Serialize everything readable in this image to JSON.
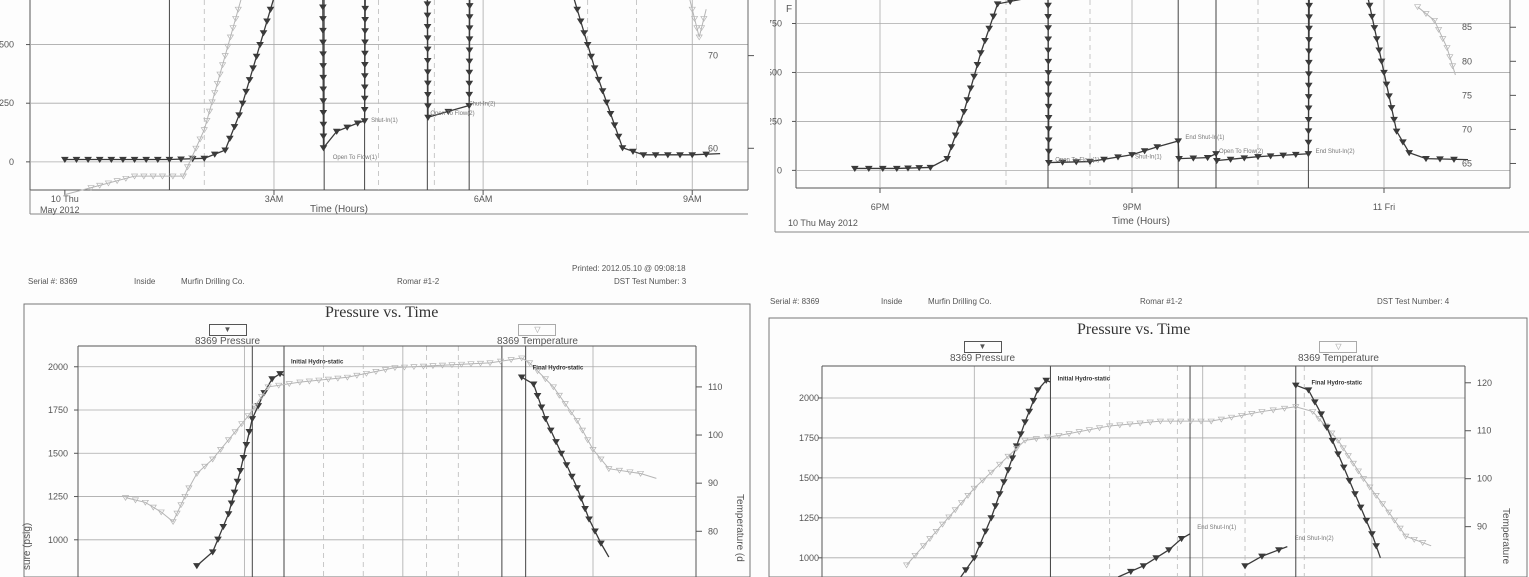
{
  "colors": {
    "pressure": "#3a3a3a",
    "temperature": "#b5b5b5",
    "grid": "#999999"
  },
  "chart_data": [
    {
      "id": "top-left",
      "type": "line",
      "title": "",
      "xlabel": "Time (Hours)",
      "date_label": "May 2012",
      "x_ticks": [
        "10 Thu",
        "3AM",
        "6AM",
        "9AM"
      ],
      "y_ticks": [
        "0",
        "250",
        "500"
      ],
      "y2_ticks": [
        "60",
        "70"
      ],
      "ylabel": "",
      "y2label": "",
      "series": [
        {
          "name": "",
          "role": "pressure",
          "points": [
            [
              0,
              10
            ],
            [
              0.5,
              10
            ],
            [
              1,
              10
            ],
            [
              1.5,
              10
            ],
            [
              2,
              15
            ],
            [
              2.3,
              50
            ],
            [
              2.5,
              200
            ],
            [
              2.8,
              500
            ],
            [
              3.0,
              700
            ],
            [
              3.1,
              750
            ],
            [
              3.35,
              790
            ],
            [
              3.7,
              760
            ],
            [
              3.71,
              60
            ],
            [
              3.9,
              130
            ],
            [
              4.2,
              165
            ],
            [
              4.3,
              175
            ],
            [
              4.31,
              750
            ],
            [
              4.32,
              760
            ],
            [
              5.2,
              770
            ],
            [
              5.21,
              190
            ],
            [
              5.5,
              215
            ],
            [
              5.8,
              240
            ],
            [
              5.81,
              760
            ],
            [
              7.0,
              790
            ],
            [
              7.3,
              700
            ],
            [
              7.6,
              400
            ],
            [
              8.0,
              60
            ],
            [
              8.3,
              30
            ],
            [
              9.0,
              30
            ],
            [
              9.4,
              35
            ]
          ]
        },
        {
          "name": "",
          "role": "temperature",
          "points": [
            [
              0,
              55
            ],
            [
              0.5,
              56
            ],
            [
              1,
              57
            ],
            [
              1.4,
              57
            ],
            [
              1.7,
              57
            ],
            [
              2.0,
              62
            ],
            [
              2.3,
              70
            ],
            [
              2.6,
              78
            ],
            [
              3.0,
              82
            ],
            [
              6.5,
              87
            ],
            [
              8.5,
              85
            ],
            [
              8.9,
              78
            ],
            [
              9.1,
              72
            ],
            [
              9.2,
              75
            ]
          ]
        }
      ],
      "annotations": [
        "Open To Flow(1)",
        "Shut-In(1)",
        "Open To Flow(2)",
        "Shut-In(2)"
      ]
    },
    {
      "id": "top-right",
      "type": "line",
      "title": "",
      "xlabel": "Time (Hours)",
      "date_label": "10 Thu May 2012",
      "x_ticks": [
        "6PM",
        "9PM",
        "11 Fri"
      ],
      "y_ticks": [
        "0",
        "250",
        "500",
        "750"
      ],
      "y2_ticks": [
        "65",
        "70",
        "75",
        "80",
        "85"
      ],
      "ylabel": "",
      "y2label": "",
      "series": [
        {
          "name": "",
          "role": "pressure",
          "points": [
            [
              17.7,
              10
            ],
            [
              18.2,
              10
            ],
            [
              18.6,
              15
            ],
            [
              18.8,
              60
            ],
            [
              19.0,
              300
            ],
            [
              19.2,
              600
            ],
            [
              19.4,
              850
            ],
            [
              20.0,
              900
            ],
            [
              20.01,
              40
            ],
            [
              20.5,
              45
            ],
            [
              21.0,
              80
            ],
            [
              21.3,
              120
            ],
            [
              21.55,
              150
            ],
            [
              21.56,
              60
            ],
            [
              21.9,
              65
            ],
            [
              22.0,
              85
            ],
            [
              22.01,
              50
            ],
            [
              22.5,
              70
            ],
            [
              23.1,
              85
            ],
            [
              23.11,
              900
            ],
            [
              23.8,
              900
            ],
            [
              24.0,
              500
            ],
            [
              24.15,
              200
            ],
            [
              24.3,
              90
            ],
            [
              24.5,
              60
            ],
            [
              25.0,
              55
            ]
          ]
        },
        {
          "name": "",
          "role": "temperature",
          "points": [
            [
              24.4,
              88
            ],
            [
              24.6,
              86
            ],
            [
              24.75,
              82
            ],
            [
              24.85,
              78
            ]
          ]
        }
      ],
      "annotations": [
        "Open To Flow(1)",
        "Shut-In(1)",
        "End Shut-In(1)",
        "Open To Flow(2)",
        "End Shut-In(2)"
      ]
    },
    {
      "id": "bottom-left",
      "type": "line",
      "header": {
        "serial": "Serial #:  8369",
        "position": "Inside",
        "company": "Murfin Drilling Co.",
        "well": "Romar #1-2",
        "printed": "Printed: 2012.05.10 @ 09:08:18",
        "test": "DST Test Number: 3"
      },
      "title": "Pressure vs. Time",
      "legend": [
        {
          "marker": "▼",
          "label": "8369 Pressure"
        },
        {
          "marker": "▽",
          "label": "8369 Temperature"
        }
      ],
      "ylabel": "sure (psig)",
      "y2label": "Temperature (d",
      "y_ticks": [
        "1000",
        "1250",
        "1500",
        "1750",
        "2000"
      ],
      "y2_ticks": [
        "80",
        "90",
        "100",
        "110"
      ],
      "series": [
        {
          "name": "8369 Pressure",
          "role": "pressure",
          "points": [
            [
              0.9,
              850
            ],
            [
              1.1,
              930
            ],
            [
              1.3,
              1150
            ],
            [
              1.45,
              1400
            ],
            [
              1.6,
              1700
            ],
            [
              1.75,
              1850
            ],
            [
              1.85,
              1930
            ],
            [
              1.95,
              1960
            ],
            [
              2.0,
              1950
            ]
          ]
        },
        {
          "name": "8369 Temperature",
          "role": "temperature",
          "points": [
            [
              0,
              87
            ],
            [
              0.25,
              86
            ],
            [
              0.45,
              84
            ],
            [
              0.6,
              82
            ],
            [
              0.8,
              89
            ],
            [
              0.9,
              92
            ],
            [
              1.1,
              95
            ],
            [
              1.3,
              99
            ],
            [
              1.55,
              104
            ],
            [
              1.8,
              110
            ],
            [
              2.2,
              111
            ],
            [
              2.8,
              112
            ],
            [
              3.4,
              114
            ],
            [
              4.0,
              114.5
            ],
            [
              4.6,
              115
            ],
            [
              5.0,
              116
            ],
            [
              5.1,
              115
            ],
            [
              5.4,
              110
            ],
            [
              5.7,
              103
            ],
            [
              5.9,
              97
            ],
            [
              6.1,
              93
            ],
            [
              6.5,
              92
            ],
            [
              6.7,
              91
            ]
          ]
        },
        {
          "name": "8369 Pressure",
          "role": "pressure-final",
          "points": [
            [
              5.0,
              1940
            ],
            [
              5.15,
              1900
            ],
            [
              5.3,
              1700
            ],
            [
              5.5,
              1500
            ],
            [
              5.7,
              1300
            ],
            [
              5.85,
              1120
            ],
            [
              6.0,
              980
            ],
            [
              6.1,
              900
            ]
          ]
        }
      ],
      "annotations": [
        "Initial Hydro-static",
        "Final Hydro-static"
      ]
    },
    {
      "id": "bottom-right",
      "type": "line",
      "header": {
        "serial": "Serial #:  8369",
        "position": "Inside",
        "company": "Murfin Drilling Co.",
        "well": "Romar #1-2",
        "printed": "",
        "test": "DST Test Number: 4"
      },
      "title": "Pressure vs. Time",
      "legend": [
        {
          "marker": "▼",
          "label": "8369 Pressure"
        },
        {
          "marker": "▽",
          "label": "8369 Temperature"
        }
      ],
      "ylabel": "",
      "y2label": "Temperature",
      "y_ticks": [
        "1000",
        "1250",
        "1500",
        "1750",
        "2000"
      ],
      "y2_ticks": [
        "90",
        "100",
        "110",
        "120"
      ],
      "series": [
        {
          "name": "8369 Pressure",
          "role": "pressure",
          "points": [
            [
              1.0,
              850
            ],
            [
              1.2,
              1000
            ],
            [
              1.4,
              1250
            ],
            [
              1.6,
              1550
            ],
            [
              1.8,
              1850
            ],
            [
              1.95,
              2050
            ],
            [
              2.05,
              2110
            ],
            [
              2.1,
              2100
            ]
          ]
        },
        {
          "name": "8369 Temperature",
          "role": "temperature",
          "points": [
            [
              0.4,
              82
            ],
            [
              0.6,
              86
            ],
            [
              0.9,
              92
            ],
            [
              1.2,
              98
            ],
            [
              1.5,
              103
            ],
            [
              1.8,
              108
            ],
            [
              2.2,
              109
            ],
            [
              2.8,
              111
            ],
            [
              3.4,
              112
            ],
            [
              4.0,
              112
            ],
            [
              4.6,
              114
            ],
            [
              5.0,
              115
            ],
            [
              5.2,
              114
            ],
            [
              5.5,
              108
            ],
            [
              5.8,
              100
            ],
            [
              6.1,
              93
            ],
            [
              6.3,
              88
            ],
            [
              6.6,
              86
            ]
          ]
        },
        {
          "name": "8369 Pressure",
          "role": "pressure-shutin",
          "points": [
            [
              2.9,
              880
            ],
            [
              3.2,
              950
            ],
            [
              3.5,
              1050
            ],
            [
              3.65,
              1120
            ],
            [
              3.75,
              1150
            ]
          ]
        },
        {
          "name": "8369 Pressure",
          "role": "pressure-shutin2",
          "points": [
            [
              4.4,
              950
            ],
            [
              4.6,
              1010
            ],
            [
              4.8,
              1050
            ],
            [
              4.9,
              1070
            ]
          ]
        },
        {
          "name": "8369 Pressure",
          "role": "pressure-final",
          "points": [
            [
              5.0,
              2080
            ],
            [
              5.15,
              2050
            ],
            [
              5.3,
              1900
            ],
            [
              5.5,
              1650
            ],
            [
              5.7,
              1400
            ],
            [
              5.9,
              1150
            ],
            [
              6.0,
              1000
            ]
          ]
        }
      ],
      "annotations": [
        "Initial Hydro-static",
        "Final Hydro-static",
        "End Shut-In(1)",
        "End Shut-In(2)"
      ]
    }
  ]
}
